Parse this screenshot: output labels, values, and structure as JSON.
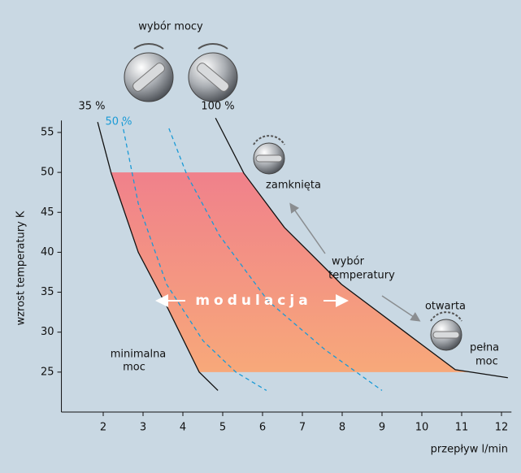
{
  "chart_data": {
    "type": "line",
    "title": "wybór mocy",
    "x_label": "przepływ l/min",
    "y_label": "wzrost temperatury K",
    "xlim": [
      0.95,
      12.25
    ],
    "ylim": [
      20,
      56.5
    ],
    "xticks": [
      2,
      3,
      4,
      5,
      6,
      7,
      8,
      9,
      10,
      11,
      12
    ],
    "yticks": [
      25,
      30,
      35,
      40,
      45,
      50,
      55
    ],
    "series": [
      {
        "name": "35 %",
        "color": "#111111",
        "dashed": false,
        "x": [
          1.86,
          2.2,
          2.88,
          3.63,
          4.41,
          4.88
        ],
        "values": [
          56.3,
          49.9,
          40,
          32.9,
          25,
          22.7
        ]
      },
      {
        "name": "50 %",
        "color": "#1a9ad6",
        "dashed": true,
        "x": [
          2.47,
          2.88,
          3.59,
          4.51,
          5.33,
          6.1
        ],
        "values": [
          56.3,
          46.1,
          36,
          28.9,
          25,
          22.7
        ]
      },
      {
        "color": "#1a9ad6",
        "dashed": true,
        "x": [
          3.65,
          4.1,
          4.92,
          6.14,
          7.57,
          9.0
        ],
        "values": [
          55.5,
          49.7,
          42.1,
          33.9,
          27.8,
          22.7
        ]
      },
      {
        "name": "100 %",
        "color": "#111111",
        "dashed": false,
        "x": [
          4.82,
          5.53,
          6.55,
          7.98,
          9.61,
          10.84,
          12.16
        ],
        "values": [
          56.8,
          49.9,
          43.1,
          36,
          29.9,
          25.3,
          24.3
        ]
      }
    ],
    "modulation_range": [
      25,
      50
    ],
    "annotations": {
      "minimal": [
        "minimalna",
        "moc"
      ],
      "closed": "zamknięta",
      "temperature": [
        "wybór",
        "temperatury"
      ],
      "open": "otwarta",
      "full": [
        "pełna",
        "moc"
      ],
      "modulation": "modulacja"
    }
  }
}
